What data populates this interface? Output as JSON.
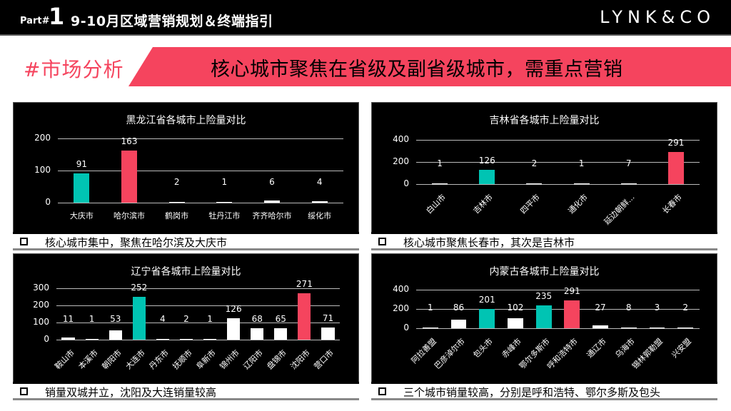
{
  "header": {
    "part_label": "Part#",
    "part_number": "1",
    "title": "9-10月区域营销规划＆终端指引",
    "logo": "LYNK&CO"
  },
  "section": {
    "tag": "#市场分析",
    "headline": "核心城市聚焦在省级及副省级城市，需重点营销"
  },
  "colors": {
    "accent_pink": "#F5445E",
    "accent_teal": "#00C4B3",
    "bar_default": "#FFFFFF",
    "panel_bg": "#000000"
  },
  "notes": [
    "核心城市集中，聚焦在哈尔滨及大庆市",
    "核心城市聚焦长春市，其次是吉林市",
    "销量双城并立，沈阳及大连销量较高",
    "三个城市销量较高，分别是呼和浩特、鄂尔多斯及包头"
  ],
  "chart_data": [
    {
      "type": "bar",
      "title": "黑龙江省各城市上险量对比",
      "categories": [
        "大庆市",
        "哈尔滨市",
        "鹤岗市",
        "牡丹江市",
        "齐齐哈尔市",
        "绥化市"
      ],
      "values": [
        91,
        163,
        2,
        1,
        6,
        4
      ],
      "colors": [
        "#00C4B3",
        "#F5445E",
        "#FFFFFF",
        "#FFFFFF",
        "#FFFFFF",
        "#FFFFFF"
      ],
      "yticks": [
        0,
        100,
        200
      ],
      "ylim": [
        0,
        200
      ],
      "xlabel": "",
      "ylabel": "",
      "grid": true,
      "label_rotation": 0
    },
    {
      "type": "bar",
      "title": "吉林省各城市上险量对比",
      "categories": [
        "白山市",
        "吉林市",
        "四平市",
        "通化市",
        "延边朝鲜...",
        "长春市"
      ],
      "values": [
        1,
        126,
        2,
        1,
        7,
        291
      ],
      "colors": [
        "#FFFFFF",
        "#00C4B3",
        "#FFFFFF",
        "#FFFFFF",
        "#FFFFFF",
        "#F5445E"
      ],
      "yticks": [
        0,
        200,
        400
      ],
      "ylim": [
        0,
        400
      ],
      "xlabel": "",
      "ylabel": "",
      "grid": true,
      "label_rotation": -45
    },
    {
      "type": "bar",
      "title": "辽宁省各城市上险量对比",
      "categories": [
        "鞍山市",
        "本溪市",
        "朝阳市",
        "大连市",
        "丹东市",
        "抚顺市",
        "阜新市",
        "锦州市",
        "辽阳市",
        "盘锦市",
        "沈阳市",
        "营口市"
      ],
      "values": [
        11,
        1,
        53,
        252,
        4,
        2,
        1,
        126,
        68,
        65,
        271,
        71
      ],
      "colors": [
        "#FFFFFF",
        "#FFFFFF",
        "#FFFFFF",
        "#00C4B3",
        "#FFFFFF",
        "#FFFFFF",
        "#FFFFFF",
        "#FFFFFF",
        "#FFFFFF",
        "#FFFFFF",
        "#F5445E",
        "#FFFFFF"
      ],
      "yticks": [
        0,
        100,
        200,
        300
      ],
      "ylim": [
        0,
        300
      ],
      "xlabel": "",
      "ylabel": "",
      "grid": true,
      "label_rotation": -45
    },
    {
      "type": "bar",
      "title": "内蒙古各城市上险量对比",
      "categories": [
        "阿拉善盟",
        "巴彦淖尔市",
        "包头市",
        "赤峰市",
        "鄂尔多斯市",
        "呼和浩特市",
        "通辽市",
        "乌海市",
        "锡林郭勒盟",
        "兴安盟"
      ],
      "values": [
        1,
        86,
        201,
        102,
        235,
        291,
        27,
        8,
        3,
        2
      ],
      "colors": [
        "#FFFFFF",
        "#FFFFFF",
        "#00C4B3",
        "#FFFFFF",
        "#00C4B3",
        "#F5445E",
        "#FFFFFF",
        "#FFFFFF",
        "#FFFFFF",
        "#FFFFFF"
      ],
      "yticks": [
        0,
        200,
        400
      ],
      "ylim": [
        0,
        400
      ],
      "xlabel": "",
      "ylabel": "",
      "grid": true,
      "label_rotation": -45
    }
  ]
}
